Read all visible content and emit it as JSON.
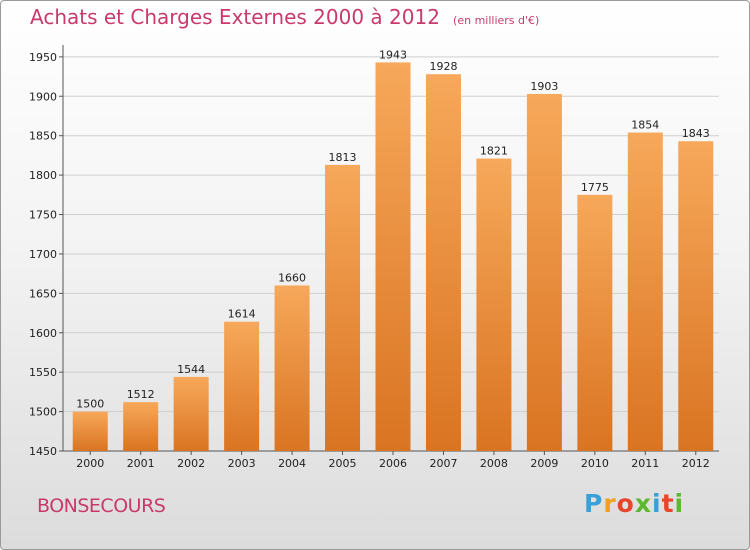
{
  "title": "Achats et Charges Externes 2000 à 2012",
  "subtitle": "(en milliers d'€)",
  "commune": "BONSECOURS",
  "brand": {
    "letters": [
      "P",
      "r",
      "o",
      "x",
      "i",
      "t",
      "i"
    ],
    "colors": [
      "#3aa0d8",
      "#f2a020",
      "#e8452a",
      "#5cb82e",
      "#3aa0d8",
      "#e8452a",
      "#5cb82e"
    ]
  },
  "colors": {
    "bar_light": "#f7a85a",
    "bar_dark": "#d97422",
    "text_accent": "#c93a6b"
  },
  "chart_data": {
    "type": "bar",
    "title": "Achats et Charges Externes 2000 à 2012",
    "subtitle": "(en milliers d'€)",
    "categories": [
      "2000",
      "2001",
      "2002",
      "2003",
      "2004",
      "2005",
      "2006",
      "2007",
      "2008",
      "2009",
      "2010",
      "2011",
      "2012"
    ],
    "values": [
      1500,
      1512,
      1544,
      1614,
      1660,
      1813,
      1943,
      1928,
      1821,
      1903,
      1775,
      1854,
      1843
    ],
    "ylim": [
      1450,
      1960
    ],
    "yticks": [
      1450,
      1500,
      1550,
      1600,
      1650,
      1700,
      1750,
      1800,
      1850,
      1900,
      1950
    ],
    "grid": true,
    "data_labels": true
  }
}
